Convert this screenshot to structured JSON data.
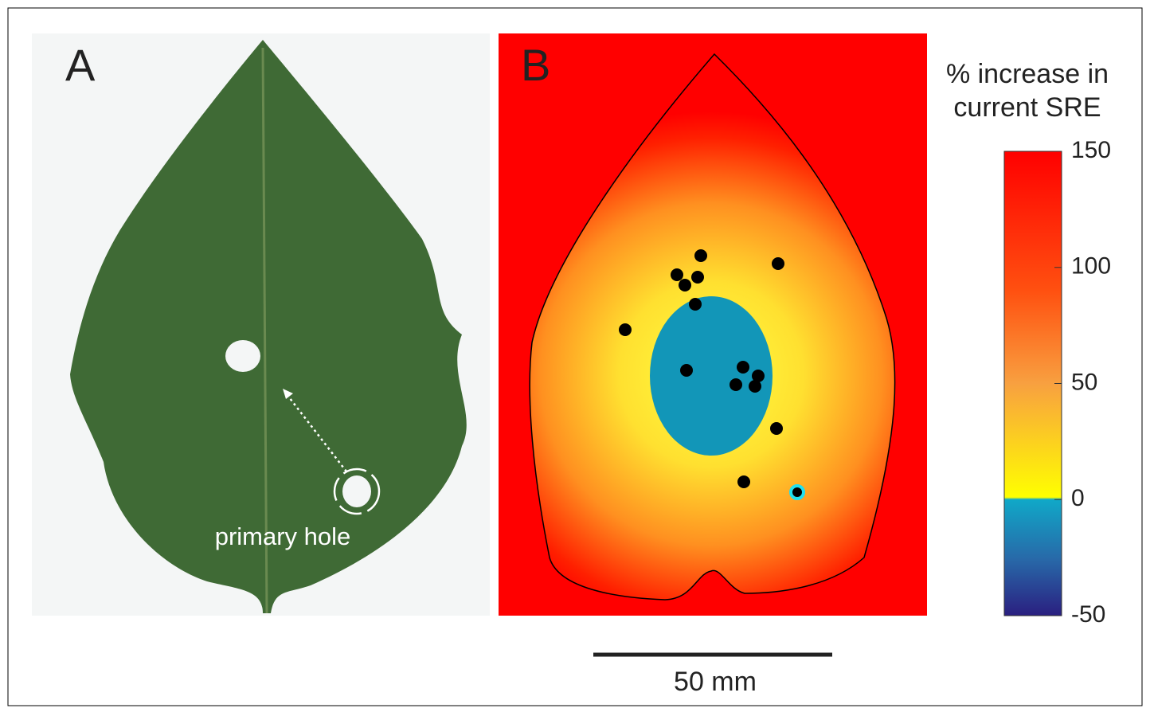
{
  "panel_a": {
    "label": "A",
    "annotation": "primary hole"
  },
  "panel_b": {
    "label": "B"
  },
  "colorbar": {
    "title_lines": [
      "% increase in",
      "current SRE"
    ],
    "lim": [
      -50,
      150
    ],
    "ticks": [
      150,
      100,
      50,
      0,
      -50
    ]
  },
  "scale_bar": {
    "label": "50 mm"
  }
}
